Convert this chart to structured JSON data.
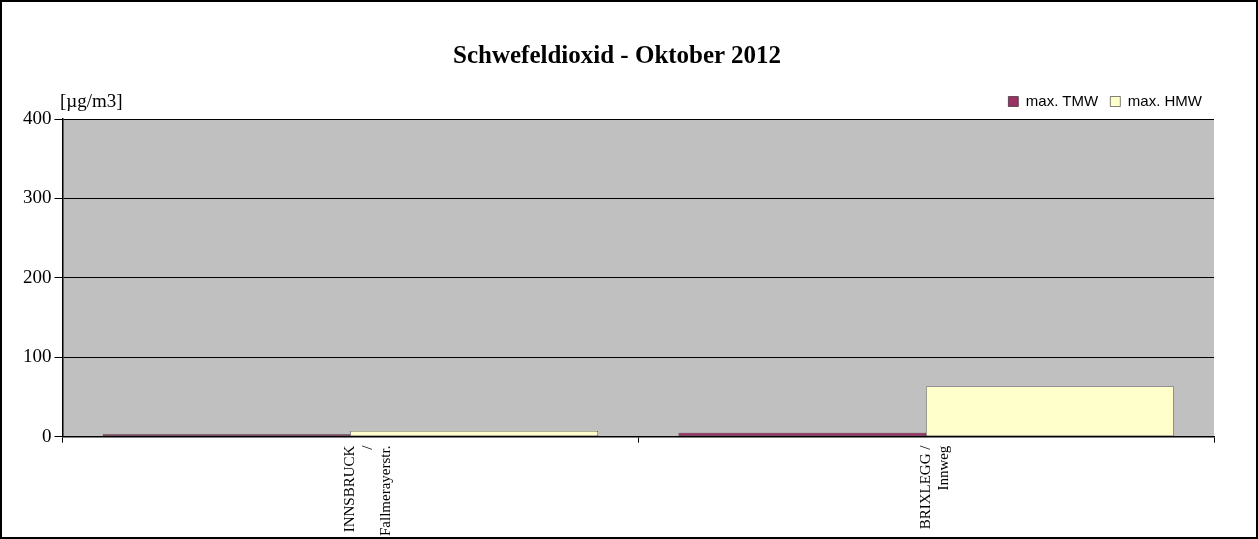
{
  "chart_data": {
    "type": "bar",
    "title": "Schwefeldioxid - Oktober 2012",
    "ylabel": "[µg/m3]",
    "categories": [
      "INNSBRUCK / Fallmerayerstr.",
      "BRIXLEGG / Innweg"
    ],
    "series": [
      {
        "name": "max. TMW",
        "color": "#993366",
        "values": [
          3,
          5
        ]
      },
      {
        "name": "max. HMW",
        "color": "#ffffcc",
        "values": [
          7,
          63
        ]
      }
    ],
    "ylim": [
      0,
      400
    ],
    "yticks": [
      0,
      100,
      200,
      300,
      400
    ],
    "grid": "y",
    "legend": "top right"
  }
}
